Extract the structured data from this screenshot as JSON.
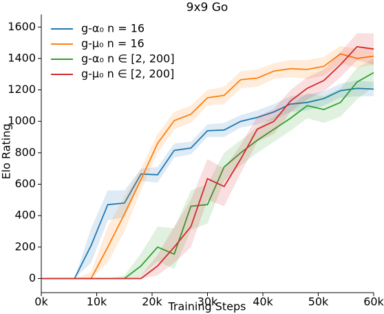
{
  "chart_data": {
    "type": "line",
    "title": "9x9 Go",
    "x_label": "Training Steps",
    "y_label": "Elo Rating",
    "x": [
      0,
      3000,
      6000,
      9000,
      12000,
      15000,
      18000,
      21000,
      24000,
      27000,
      30000,
      33000,
      36000,
      39000,
      42000,
      45000,
      48000,
      51000,
      54000,
      57000,
      60000
    ],
    "xlim": [
      0,
      60000
    ],
    "xticks": [
      {
        "value": 0,
        "label": "0k"
      },
      {
        "value": 10000,
        "label": "10k"
      },
      {
        "value": 20000,
        "label": "20k"
      },
      {
        "value": 30000,
        "label": "30k"
      },
      {
        "value": 40000,
        "label": "40k"
      },
      {
        "value": 50000,
        "label": "50k"
      },
      {
        "value": 60000,
        "label": "60k"
      }
    ],
    "ylim": [
      -90,
      1680
    ],
    "yticks": [
      0,
      200,
      400,
      600,
      800,
      1000,
      1200,
      1400,
      1600
    ],
    "grid": false,
    "legend": "upper left",
    "series": [
      {
        "name": "g-α₀ n = 16",
        "color": "#1f77b4",
        "values": [
          0,
          0,
          0,
          210,
          470,
          480,
          665,
          660,
          815,
          830,
          940,
          945,
          1000,
          1025,
          1060,
          1110,
          1120,
          1145,
          1195,
          1210,
          1205
        ],
        "lower": [
          0,
          0,
          0,
          100,
          370,
          390,
          620,
          610,
          770,
          790,
          900,
          900,
          960,
          980,
          1010,
          1060,
          1070,
          1100,
          1150,
          1160,
          1160
        ],
        "upper": [
          0,
          0,
          0,
          320,
          560,
          560,
          700,
          710,
          860,
          870,
          980,
          990,
          1040,
          1070,
          1110,
          1160,
          1170,
          1190,
          1240,
          1260,
          1250
        ]
      },
      {
        "name": "g-μ₀ n = 16",
        "color": "#ff7f0e",
        "values": [
          0,
          0,
          0,
          0,
          200,
          410,
          630,
          860,
          1005,
          1045,
          1150,
          1165,
          1265,
          1275,
          1320,
          1335,
          1330,
          1350,
          1430,
          1400,
          1415
        ],
        "lower": [
          0,
          0,
          0,
          0,
          100,
          300,
          560,
          800,
          950,
          990,
          1100,
          1110,
          1210,
          1220,
          1270,
          1280,
          1270,
          1290,
          1370,
          1340,
          1360
        ],
        "upper": [
          0,
          0,
          0,
          40,
          330,
          520,
          700,
          920,
          1060,
          1100,
          1200,
          1220,
          1320,
          1330,
          1370,
          1390,
          1390,
          1410,
          1480,
          1460,
          1470
        ]
      },
      {
        "name": "g-α₀ n ∈ [2, 200]",
        "color": "#2ca02c",
        "values": [
          0,
          0,
          0,
          0,
          0,
          0,
          80,
          200,
          155,
          460,
          470,
          710,
          800,
          880,
          950,
          1020,
          1100,
          1075,
          1120,
          1250,
          1310
        ],
        "lower": [
          0,
          0,
          0,
          0,
          0,
          0,
          20,
          110,
          60,
          310,
          350,
          620,
          720,
          800,
          870,
          940,
          1020,
          990,
          1030,
          1140,
          1220
        ],
        "upper": [
          0,
          0,
          0,
          0,
          0,
          20,
          160,
          330,
          320,
          560,
          600,
          800,
          880,
          960,
          1030,
          1100,
          1180,
          1160,
          1210,
          1340,
          1400
        ]
      },
      {
        "name": "g-μ₀ n ∈ [2, 200]",
        "color": "#d62728",
        "values": [
          0,
          0,
          0,
          0,
          0,
          0,
          0,
          80,
          200,
          330,
          635,
          585,
          760,
          950,
          1000,
          1130,
          1210,
          1260,
          1360,
          1475,
          1460
        ],
        "lower": [
          0,
          0,
          0,
          0,
          0,
          0,
          0,
          20,
          100,
          200,
          500,
          460,
          670,
          870,
          920,
          1060,
          1140,
          1190,
          1280,
          1390,
          1360
        ],
        "upper": [
          0,
          0,
          0,
          0,
          0,
          0,
          20,
          150,
          330,
          500,
          760,
          700,
          850,
          1030,
          1080,
          1200,
          1280,
          1330,
          1440,
          1560,
          1560
        ]
      }
    ]
  }
}
